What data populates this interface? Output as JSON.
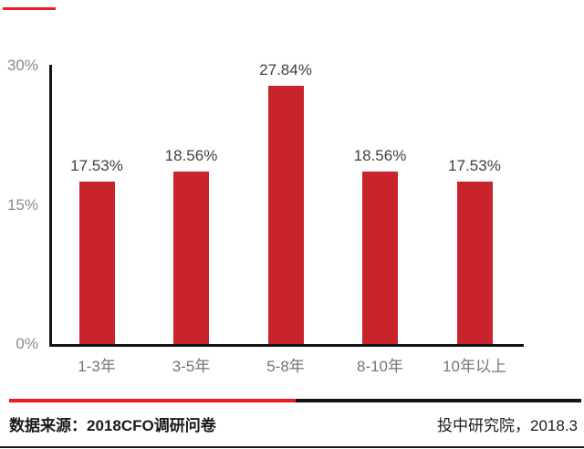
{
  "accent": {
    "top_dash_color": "#ec1c24"
  },
  "chart_data": {
    "type": "bar",
    "categories": [
      "1-3年",
      "3-5年",
      "5-8年",
      "8-10年",
      "10年以上"
    ],
    "values": [
      17.53,
      18.56,
      27.84,
      18.56,
      17.53
    ],
    "data_labels": [
      "17.53%",
      "18.56%",
      "27.84%",
      "18.56%",
      "17.53%"
    ],
    "title": "",
    "xlabel": "",
    "ylabel": "",
    "ylim": [
      0,
      30
    ],
    "ytick_values": [
      0,
      15,
      30
    ],
    "ytick_labels": [
      "0%",
      "15%",
      "30%"
    ],
    "grid": false,
    "legend": false,
    "bar_color": "#c9242b",
    "axis_color": "#141414",
    "tick_label_color": "#8a8a8a",
    "value_label_color": "#3f3f3f",
    "category_label_color": "#757575"
  },
  "footer": {
    "source_label": "数据来源：2018CFO调研问卷",
    "publisher_label": "投中研究院，2018.3",
    "divider_red": "#ec1c24",
    "divider_black": "#141414"
  }
}
